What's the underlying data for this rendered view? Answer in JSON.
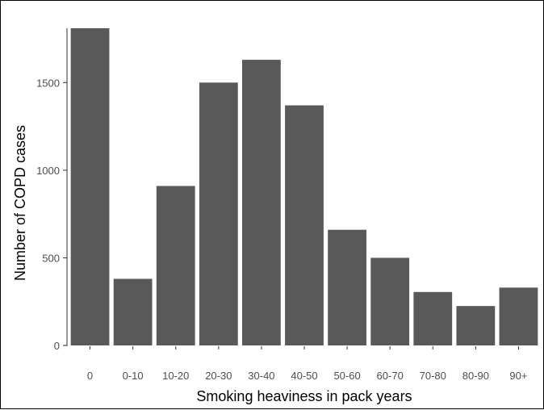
{
  "chart_data": {
    "type": "bar",
    "title": "",
    "xlabel": "Smoking heaviness in pack years",
    "ylabel": "Number of COPD cases",
    "categories": [
      "0",
      "0-10",
      "10-20",
      "20-30",
      "30-40",
      "40-50",
      "50-60",
      "60-70",
      "70-80",
      "80-90",
      "90+"
    ],
    "values": [
      1810,
      380,
      910,
      1500,
      1630,
      1370,
      660,
      500,
      305,
      225,
      330
    ],
    "ylim": [
      0,
      1810
    ],
    "yticks": [
      0,
      500,
      1000,
      1500
    ],
    "ytick_labels": [
      "0",
      "500",
      "1000",
      "1500"
    ],
    "grid": false,
    "legend": "none",
    "bar_color": "#595959",
    "axis_color": "#333333"
  }
}
